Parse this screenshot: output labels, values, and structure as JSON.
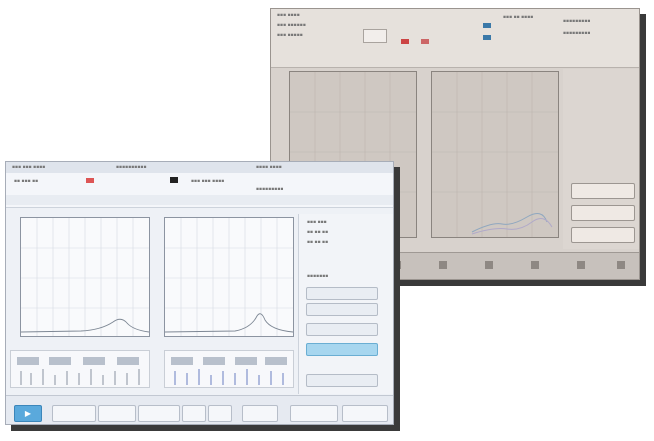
{
  "colors": {
    "back_bg": "#d8d2cd",
    "front_bg": "#eef1f6",
    "accent_blue": "#5aa9dc",
    "curve_color": "#7d8794",
    "shadow": "#3a3a3a"
  },
  "back_window": {
    "sidebar_buttons": [
      "",
      "",
      ""
    ],
    "icons": [
      "play-icon",
      "stop-icon",
      "grid-icon",
      "chart-icon",
      "settings-icon",
      "export-icon",
      "print-icon",
      "help-icon"
    ]
  },
  "front_window": {
    "panel_buttons": [
      "",
      "",
      "",
      "",
      ""
    ],
    "bottom_buttons": [
      "",
      "",
      "",
      "",
      "",
      "",
      "",
      ""
    ],
    "icons": [
      "play-icon"
    ]
  }
}
